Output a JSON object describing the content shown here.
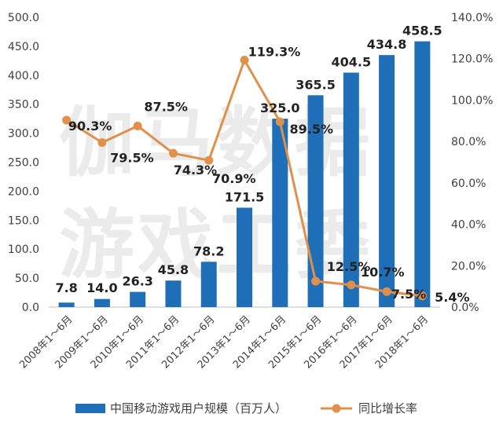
{
  "watermark": [
    "伽马数据",
    "游戏工委"
  ],
  "chart_data": {
    "type": "bar",
    "categories": [
      "2008年1～6月",
      "2009年1～6月",
      "2010年1～6月",
      "2011年1～6月",
      "2012年1～6月",
      "2013年1～6月",
      "2014年1～6月",
      "2015年1～6月",
      "2016年1～6月",
      "2017年1～6月",
      "2018年1～6月"
    ],
    "series": [
      {
        "name": "中国移动游戏用户规模（百万人）",
        "type": "bar",
        "axis": "left",
        "color": "#1f6fb8",
        "values": [
          7.8,
          14.0,
          26.3,
          45.8,
          78.2,
          171.5,
          325.0,
          365.5,
          404.5,
          434.8,
          458.5
        ],
        "labels": [
          "7.8",
          "14.0",
          "26.3",
          "45.8",
          "78.2",
          "171.5",
          "325.0",
          "365.5",
          "404.5",
          "434.8",
          "458.5"
        ]
      },
      {
        "name": "同比增长率",
        "type": "line",
        "axis": "right",
        "color": "#e0904a",
        "values": [
          90.3,
          79.5,
          87.5,
          74.3,
          70.9,
          119.3,
          89.5,
          12.5,
          10.7,
          7.5,
          5.4
        ],
        "labels": [
          "90.3%",
          "79.5%",
          "87.5%",
          "74.3%",
          "70.9%",
          "119.3%",
          "89.5%",
          "12.5%",
          "10.7%",
          "7.5%",
          "5.4%"
        ]
      }
    ],
    "y_left": {
      "min": 0,
      "max": 500,
      "step": 50,
      "ticks": [
        "0.0",
        "50.0",
        "100.0",
        "150.0",
        "200.0",
        "250.0",
        "300.0",
        "350.0",
        "400.0",
        "450.0",
        "500.0"
      ]
    },
    "y_right": {
      "min": 0,
      "max": 140,
      "step": 20,
      "ticks": [
        "0.0%",
        "20.0%",
        "40.0%",
        "60.0%",
        "80.0%",
        "100.0%",
        "120.0%",
        "140.0%"
      ]
    },
    "grid": false,
    "legend_position": "bottom"
  }
}
